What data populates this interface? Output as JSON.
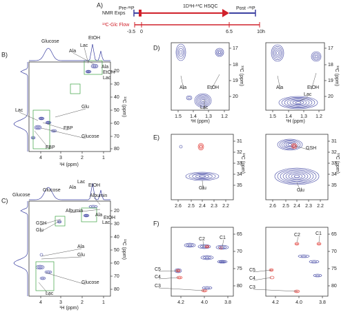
{
  "panel_a": {
    "label": "A)",
    "rows": [
      "NMR Exps",
      "¹³C-Glc Flow"
    ],
    "phases": [
      "Pre-³¹P",
      "1D¹H-¹³C HSQC",
      "Post -³¹P"
    ],
    "time_ticks": [
      "-3.5",
      "0",
      "6.5",
      "10h"
    ]
  },
  "panels": [
    {
      "label": "B)",
      "plots": [
        {
          "x_title": "¹H (ppm)",
          "y_title": "¹³C (ppm)",
          "x_ticks": [
            "4",
            "3",
            "2",
            "1"
          ],
          "y_ticks": [
            "20",
            "30",
            "40",
            "50",
            "60",
            "70",
            "80"
          ],
          "annotations": [
            "Glucose",
            "EtOH",
            "Lac",
            "Ala",
            "Ala",
            "EtOH",
            "Lac",
            "Glu",
            "Lac",
            "FBP",
            "Glucose",
            "FBP"
          ]
        }
      ]
    },
    {
      "label": "C)",
      "plots": [
        {
          "x_title": "¹H (ppm)",
          "y_title": "¹³C (ppm)",
          "x_ticks": [
            "4",
            "3",
            "2",
            "1"
          ],
          "y_ticks": [
            "20",
            "30",
            "40",
            "50",
            "60",
            "70",
            "80"
          ],
          "annotations": [
            "Glucose",
            "Glucose",
            "Lac",
            "Ala",
            "EtOH",
            "Albumin",
            "Albumin",
            "Ala",
            "EtOH",
            "Lac",
            "GSH",
            "Glu",
            "Ala",
            "Glu",
            "Glucose",
            "Lac"
          ]
        }
      ]
    },
    {
      "label": "D)",
      "plots": [
        {
          "x_title": "¹H (ppm)",
          "y_title": "¹³C (ppm)",
          "x_ticks": [
            "1.5",
            "1.4",
            "1.3",
            "1.2"
          ],
          "y_ticks": [
            "17",
            "18",
            "19",
            "20"
          ],
          "annotations": [
            "Ala",
            "EtOH",
            "Lac"
          ]
        },
        {
          "x_title": "¹H (ppm)",
          "y_title": "¹³C (ppm)",
          "x_ticks": [
            "1.5",
            "1.4",
            "1.3",
            "1.2"
          ],
          "y_ticks": [
            "17",
            "18",
            "19",
            "20"
          ],
          "annotations": [
            "Ala",
            "EtOH",
            "Lac"
          ]
        }
      ]
    },
    {
      "label": "E)",
      "plots": [
        {
          "y_title": "¹³C (ppm)",
          "x_ticks": [
            "2.6",
            "2.5",
            "2.4",
            "2.3",
            "2.2"
          ],
          "y_ticks": [
            "31",
            "32",
            "33",
            "34",
            "35"
          ],
          "annotations": [
            "Glu"
          ]
        },
        {
          "y_title": "¹³C (ppm)",
          "x_ticks": [
            "2.6",
            "2.5",
            "2.4",
            "2.3",
            "2.2"
          ],
          "y_ticks": [
            "31",
            "32",
            "33",
            "34",
            "35"
          ],
          "annotations": [
            "GSH",
            "Glu"
          ]
        }
      ]
    },
    {
      "label": "F)",
      "plots": [
        {
          "x_ticks": [
            "4.2",
            "4.0",
            "3.8"
          ],
          "y_ticks": [
            "65",
            "70",
            "75",
            "80"
          ],
          "annotations": [
            "C2",
            "C1",
            "C5",
            "C4",
            "C3"
          ]
        },
        {
          "x_ticks": [
            "4.2",
            "4.0",
            "3.8"
          ],
          "y_ticks": [
            "65",
            "70",
            "75",
            "80"
          ],
          "annotations": [
            "C2",
            "C1",
            "C5",
            "C4",
            "C3"
          ]
        }
      ]
    }
  ]
}
